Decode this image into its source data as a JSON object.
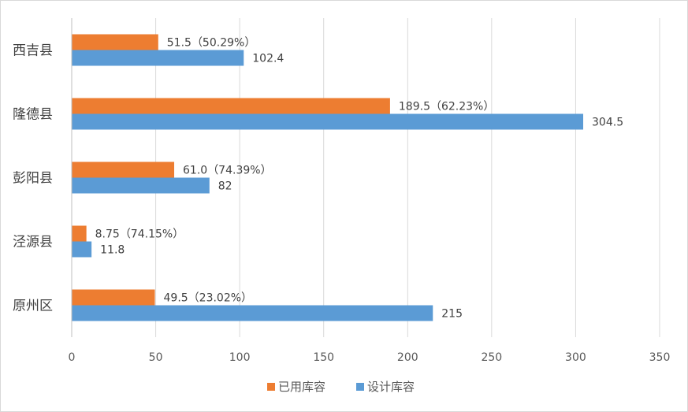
{
  "chart_data": {
    "type": "bar",
    "orientation": "horizontal",
    "categories": [
      "西吉县",
      "隆德县",
      "彭阳县",
      "泾源县",
      "原州区"
    ],
    "series": [
      {
        "name": "已用库容",
        "color": "#ED7D31",
        "values": [
          51.5,
          189.5,
          61.0,
          8.75,
          49.5
        ],
        "labels": [
          "51.5（50.29%）",
          "189.5（62.23%）",
          "61.0（74.39%）",
          "8.75（74.15%）",
          "49.5（23.02%）"
        ]
      },
      {
        "name": "设计库容",
        "color": "#5B9BD5",
        "values": [
          102.4,
          304.5,
          82,
          11.8,
          215
        ],
        "labels": [
          "102.4",
          "304.5",
          "82",
          "11.8",
          "215"
        ]
      }
    ],
    "x_ticks": [
      "0",
      "50",
      "100",
      "150",
      "200",
      "250",
      "300",
      "350"
    ],
    "xlim": [
      0,
      350
    ],
    "grid": true,
    "legend_position": "bottom"
  }
}
